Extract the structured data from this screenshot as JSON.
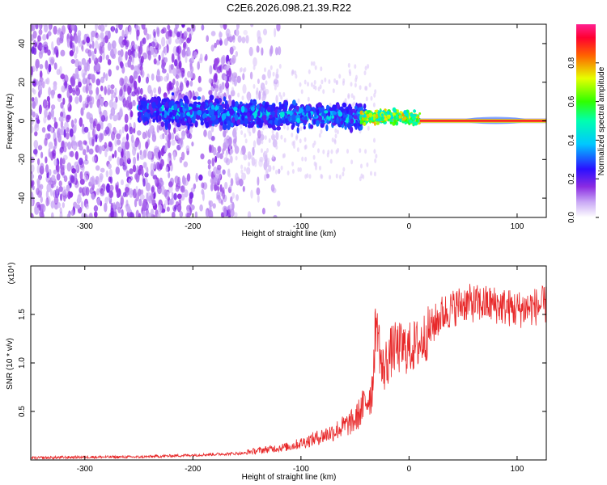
{
  "title": "C2E6.2026.098.21.39.R22",
  "colors": {
    "axis": "#000000",
    "snr_line": "#e8292a"
  },
  "chart_data": [
    {
      "type": "heatmap",
      "xlabel": "Height of straight line (km)",
      "ylabel": "Frequency (Hz)",
      "xlim": [
        -350,
        127
      ],
      "ylim": [
        -50,
        50
      ],
      "xticks": [
        -300,
        -200,
        -100,
        0,
        100
      ],
      "yticks": [
        -40,
        -20,
        0,
        20,
        40
      ],
      "colorbar": {
        "label": "Normalized spectral amplitude",
        "range": [
          0,
          1
        ],
        "ticks": [
          "0.0",
          "0.2",
          "0.4",
          "0.6",
          "0.8"
        ],
        "colormap": [
          "#ffffff",
          "#8a2be2",
          "#0000ff",
          "#00ffff",
          "#00ff00",
          "#ffff00",
          "#ff0000",
          "#ff00a0"
        ]
      },
      "description_ranges": [
        {
          "x_from": -350,
          "x_to": -160,
          "freq_spread": 50,
          "amplitude": 0.05
        },
        {
          "x_from": -250,
          "x_to": -40,
          "center": 5,
          "spread": 12,
          "amplitude": 0.3
        },
        {
          "x_from": -40,
          "x_to": 10,
          "center": 2,
          "spread": 4,
          "amplitude": 0.7
        },
        {
          "x_from": 10,
          "x_to": 127,
          "center": 0,
          "spread": 1,
          "amplitude": 0.9
        }
      ]
    },
    {
      "type": "line",
      "xlabel": "Height of straight line (km)",
      "ylabel": "SNR (10 * v/v)",
      "multiplier": "(x10⁴)",
      "xlim": [
        -350,
        127
      ],
      "ylim": [
        0,
        2.0
      ],
      "xticks": [
        -300,
        -200,
        -100,
        0,
        100
      ],
      "yticks": [
        0.5,
        1.0,
        1.5
      ],
      "series": [
        {
          "name": "SNR",
          "approx_points": [
            [
              -350,
              0.02
            ],
            [
              -300,
              0.03
            ],
            [
              -250,
              0.03
            ],
            [
              -200,
              0.05
            ],
            [
              -150,
              0.07
            ],
            [
              -110,
              0.12
            ],
            [
              -90,
              0.18
            ],
            [
              -70,
              0.25
            ],
            [
              -50,
              0.35
            ],
            [
              -35,
              0.6
            ],
            [
              -30,
              1.5
            ],
            [
              -25,
              0.9
            ],
            [
              -15,
              1.15
            ],
            [
              0,
              1.15
            ],
            [
              10,
              1.2
            ],
            [
              20,
              1.35
            ],
            [
              30,
              1.5
            ],
            [
              50,
              1.62
            ],
            [
              80,
              1.6
            ],
            [
              100,
              1.55
            ],
            [
              127,
              1.6
            ]
          ]
        }
      ]
    }
  ]
}
